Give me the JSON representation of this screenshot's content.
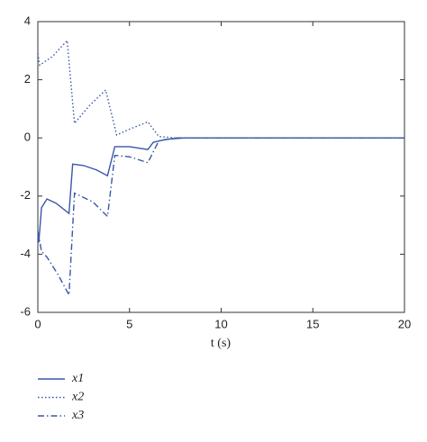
{
  "chart_data": {
    "type": "line",
    "xlabel": "t (s)",
    "xlim": [
      0,
      20
    ],
    "xticks": [
      0,
      5,
      10,
      15,
      20
    ],
    "ylim": [
      -6,
      4
    ],
    "yticks": [
      -6,
      -4,
      -2,
      0,
      2,
      4
    ],
    "grid": false,
    "legend": "below",
    "series": [
      {
        "name": "x1",
        "color": "#3a57a8",
        "linestyle": "solid",
        "x": [
          0,
          0.05,
          0.2,
          0.5,
          1.0,
          1.7,
          1.9,
          2.5,
          3.2,
          3.8,
          4.2,
          5.0,
          6.0,
          6.3,
          7.0,
          8.0,
          20
        ],
        "values": [
          -3.3,
          -3.6,
          -2.4,
          -2.1,
          -2.25,
          -2.6,
          -0.9,
          -0.95,
          -1.1,
          -1.3,
          -0.3,
          -0.3,
          -0.4,
          -0.15,
          -0.05,
          0,
          0
        ]
      },
      {
        "name": "x2",
        "color": "#3a57a8",
        "linestyle": "dotted",
        "x": [
          0,
          0.1,
          0.8,
          1.6,
          2.0,
          2.8,
          3.7,
          4.3,
          5.0,
          6.0,
          6.6,
          7.5,
          20
        ],
        "values": [
          2.9,
          2.5,
          2.8,
          3.35,
          0.5,
          1.1,
          1.65,
          0.1,
          0.3,
          0.55,
          0.05,
          0,
          0
        ]
      },
      {
        "name": "x3",
        "color": "#3a57a8",
        "linestyle": "dashdot",
        "x": [
          0,
          0.2,
          0.5,
          1.1,
          1.7,
          2.0,
          3.0,
          3.8,
          4.2,
          5.0,
          6.0,
          6.6,
          7.5,
          20
        ],
        "values": [
          -3.2,
          -3.9,
          -4.1,
          -4.7,
          -5.4,
          -1.9,
          -2.2,
          -2.7,
          -0.6,
          -0.65,
          -0.85,
          -0.1,
          0,
          0
        ]
      }
    ]
  }
}
